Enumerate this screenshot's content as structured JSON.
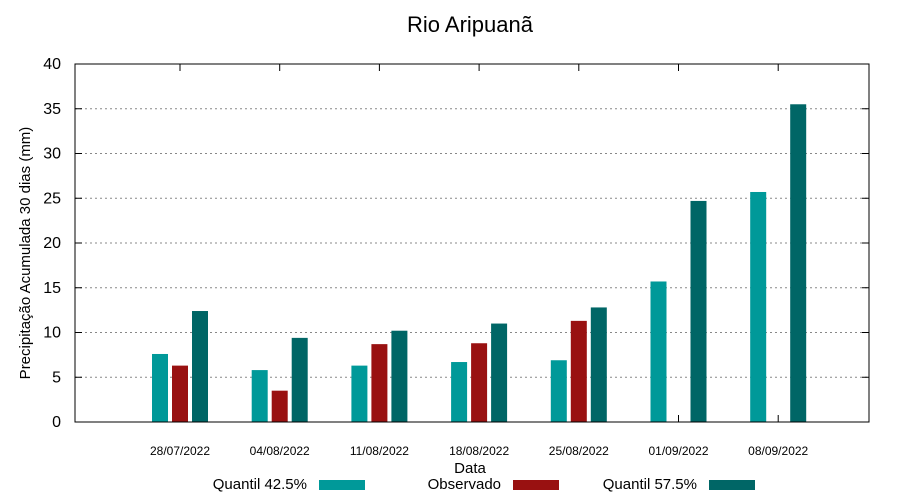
{
  "chart_data": {
    "type": "bar",
    "title": "Rio Aripuanã",
    "xlabel": "Data",
    "ylabel": "Precipitação Acumulada 30 dias (mm)",
    "ylim": [
      0,
      40
    ],
    "yticks": [
      0,
      5,
      10,
      15,
      20,
      25,
      30,
      35,
      40
    ],
    "grid": true,
    "legend_position": "bottom",
    "categories": [
      "28/07/2022",
      "04/08/2022",
      "11/08/2022",
      "18/08/2022",
      "25/08/2022",
      "01/09/2022",
      "08/09/2022"
    ],
    "series": [
      {
        "name": "Quantil 42.5%",
        "color": "#009999",
        "values": [
          7.6,
          5.8,
          6.3,
          6.7,
          6.9,
          15.7,
          25.7
        ]
      },
      {
        "name": "Observado",
        "color": "#991111",
        "values": [
          6.3,
          3.5,
          8.7,
          8.8,
          11.3,
          null,
          null
        ]
      },
      {
        "name": "Quantil 57.5%",
        "color": "#006666",
        "values": [
          12.4,
          9.4,
          10.2,
          11.0,
          12.8,
          24.7,
          35.5
        ]
      }
    ]
  }
}
